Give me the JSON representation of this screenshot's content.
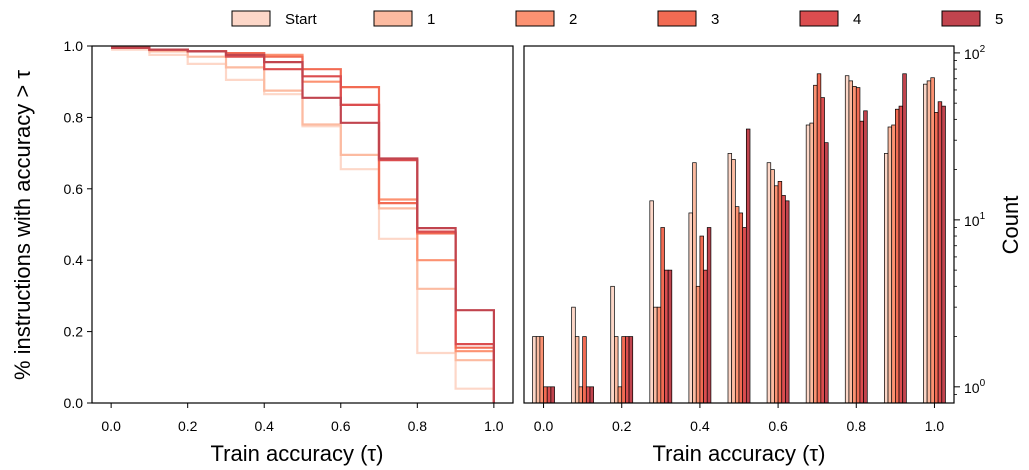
{
  "legend": [
    {
      "label": "Start",
      "color": "#fdd7c8"
    },
    {
      "label": "1",
      "color": "#fcbba1"
    },
    {
      "label": "2",
      "color": "#fc9272"
    },
    {
      "label": "3",
      "color": "#f26b53"
    },
    {
      "label": "4",
      "color": "#db4d4f"
    },
    {
      "label": "5",
      "color": "#c1444e"
    }
  ],
  "chart_data": [
    {
      "type": "line",
      "step": true,
      "xlabel": "Train accuracy (τ)",
      "ylabel": "% instructions with accuracy > τ",
      "xlim": [
        -0.05,
        1.05
      ],
      "ylim": [
        0.0,
        1.0
      ],
      "xticks": [
        "0.0",
        "0.2",
        "0.4",
        "0.6",
        "0.8",
        "1.0"
      ],
      "yticks": [
        "0.0",
        "0.2",
        "0.4",
        "0.6",
        "0.8",
        "1.0"
      ],
      "x": [
        0.0,
        0.1,
        0.2,
        0.3,
        0.4,
        0.5,
        0.6,
        0.7,
        0.8,
        0.9,
        1.0
      ],
      "series": [
        {
          "name": "Start",
          "color": "#fdd7c8",
          "values": [
            0.99,
            0.975,
            0.95,
            0.905,
            0.865,
            0.775,
            0.655,
            0.46,
            0.14,
            0.04,
            0.0
          ]
        },
        {
          "name": "1",
          "color": "#fcbba1",
          "values": [
            0.995,
            0.985,
            0.97,
            0.94,
            0.875,
            0.78,
            0.695,
            0.545,
            0.32,
            0.12,
            0.0
          ]
        },
        {
          "name": "2",
          "color": "#fc9272",
          "values": [
            0.995,
            0.99,
            0.985,
            0.975,
            0.975,
            0.9,
            0.835,
            0.57,
            0.4,
            0.145,
            0.0
          ]
        },
        {
          "name": "3",
          "color": "#f26b53",
          "values": [
            0.995,
            0.99,
            0.985,
            0.98,
            0.97,
            0.935,
            0.885,
            0.56,
            0.475,
            0.155,
            0.0
          ]
        },
        {
          "name": "4",
          "color": "#db4d4f",
          "values": [
            0.995,
            0.99,
            0.985,
            0.97,
            0.935,
            0.915,
            0.835,
            0.68,
            0.48,
            0.165,
            0.0
          ]
        },
        {
          "name": "5",
          "color": "#c1444e",
          "values": [
            0.995,
            0.99,
            0.985,
            0.975,
            0.955,
            0.855,
            0.785,
            0.685,
            0.49,
            0.26,
            0.0
          ]
        }
      ]
    },
    {
      "type": "bar",
      "xlabel": "Train accuracy (τ)",
      "ylabel": "Count",
      "yscale": "log",
      "xlim": [
        -0.05,
        1.05
      ],
      "ylim": [
        0.8,
        110
      ],
      "xticks": [
        "0.0",
        "0.2",
        "0.4",
        "0.6",
        "0.8",
        "1.0"
      ],
      "yticks": [
        "10^0",
        "10^1",
        "10^2"
      ],
      "categories": [
        0.0,
        0.1,
        0.2,
        0.3,
        0.4,
        0.5,
        0.6,
        0.7,
        0.8,
        0.9,
        1.0
      ],
      "series": [
        {
          "name": "Start",
          "color": "#fdd7c8",
          "values": [
            2,
            3,
            4,
            13,
            11,
            25,
            22,
            37,
            73,
            25,
            65
          ]
        },
        {
          "name": "1",
          "color": "#fcbba1",
          "values": [
            2,
            2,
            2,
            3,
            22,
            23,
            20,
            38,
            68,
            36,
            68
          ]
        },
        {
          "name": "2",
          "color": "#fc9272",
          "values": [
            2,
            1,
            1,
            3,
            4,
            12,
            16,
            64,
            63,
            37,
            71
          ]
        },
        {
          "name": "3",
          "color": "#f26b53",
          "values": [
            1,
            2,
            2,
            9,
            8,
            11,
            17,
            75,
            62,
            46,
            44
          ]
        },
        {
          "name": "4",
          "color": "#db4d4f",
          "values": [
            1,
            1,
            2,
            5,
            5,
            9,
            14,
            54,
            39,
            48,
            51
          ]
        },
        {
          "name": "5",
          "color": "#c1444e",
          "values": [
            1,
            1,
            2,
            5,
            9,
            35,
            13,
            29,
            45,
            75,
            48
          ]
        }
      ]
    }
  ]
}
